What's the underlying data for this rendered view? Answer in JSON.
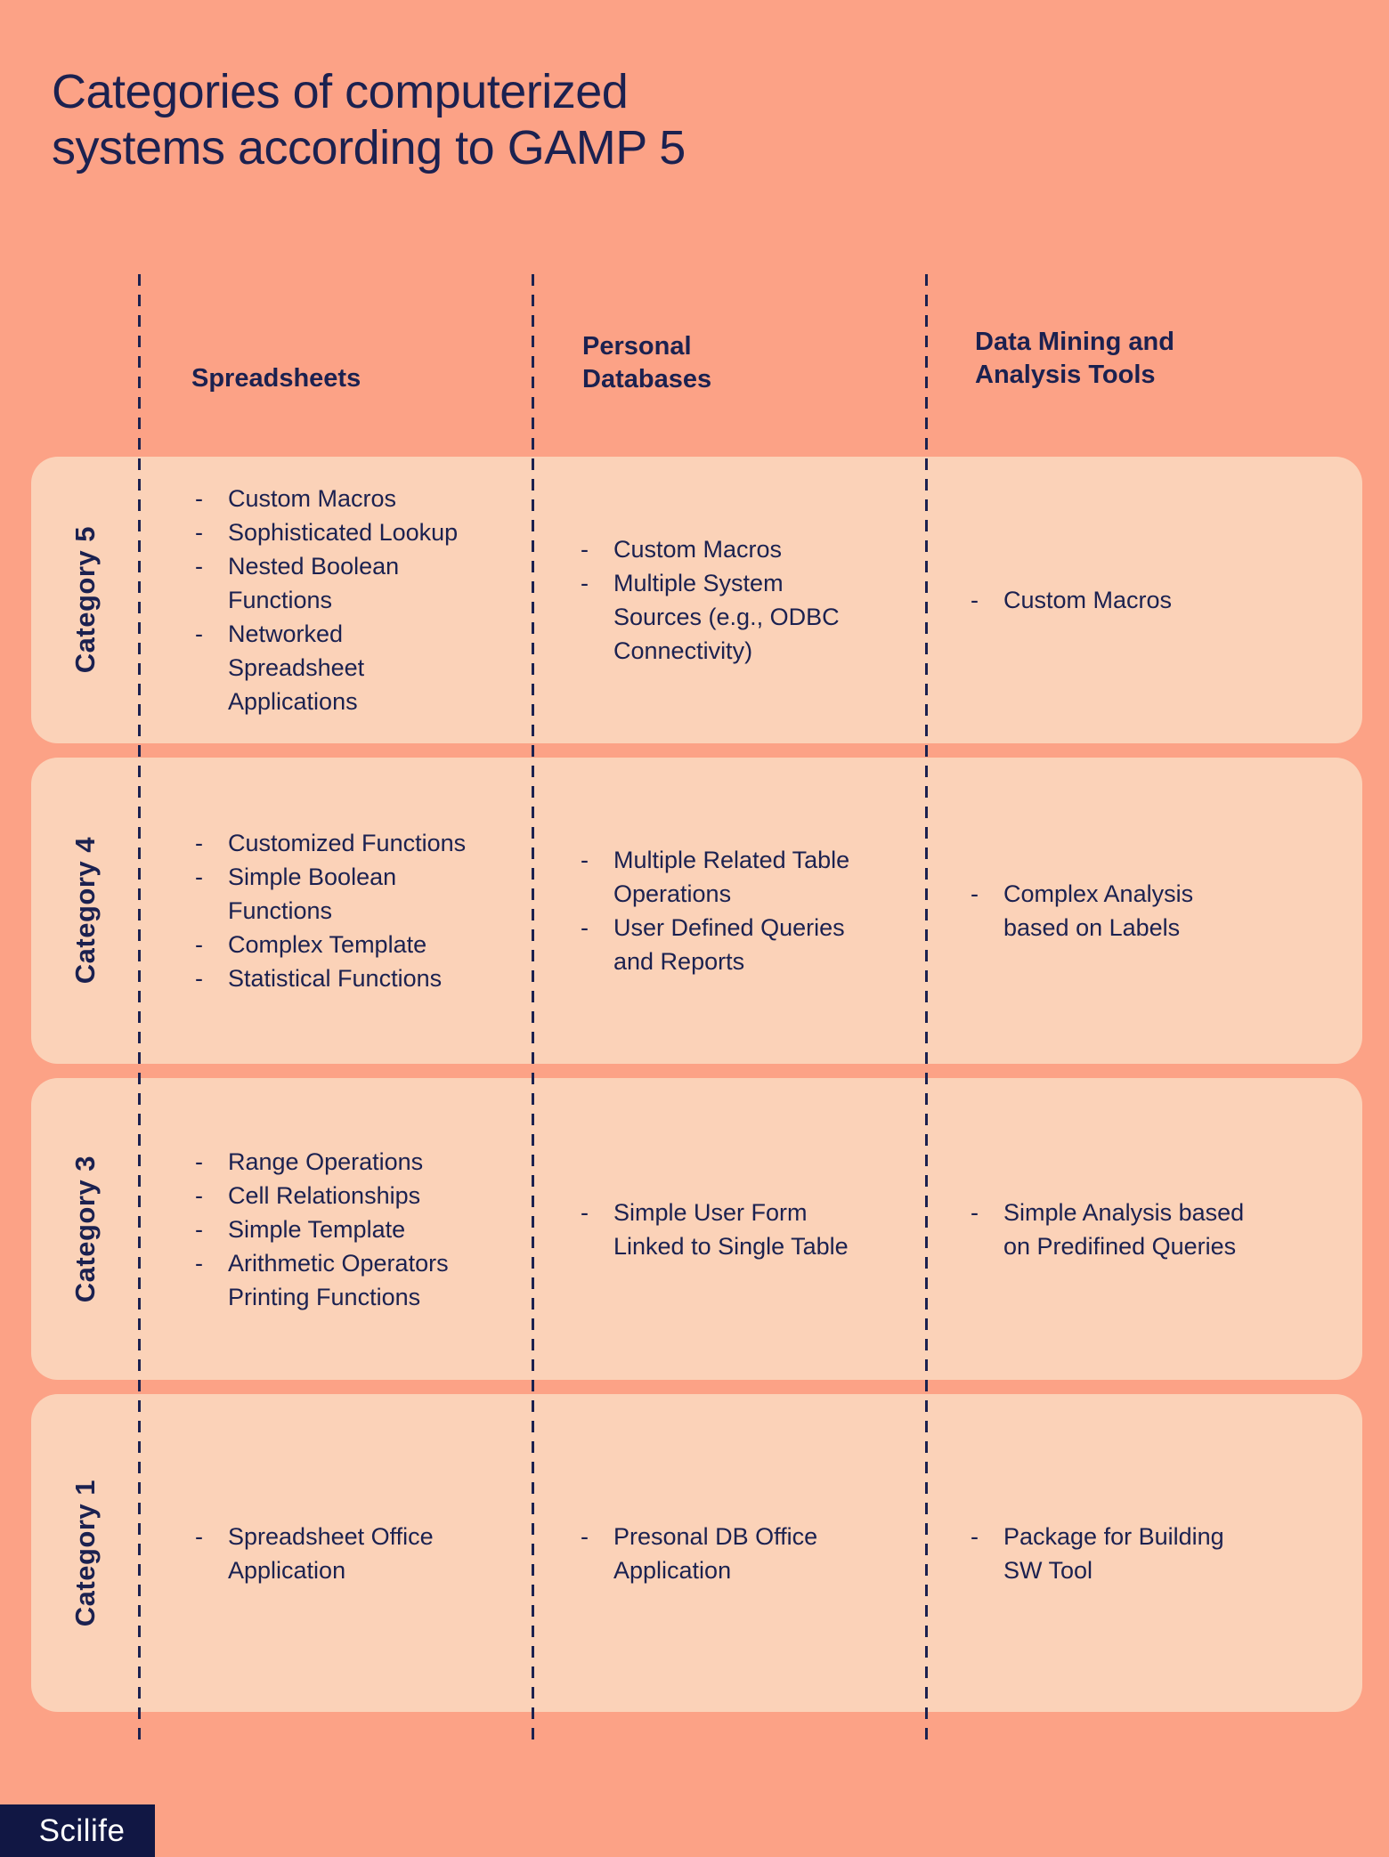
{
  "title": {
    "text": "Categories of computerized\nsystems according to GAMP 5"
  },
  "ui": {
    "bullet": "-"
  },
  "columns": [
    {
      "label": "Spreadsheets"
    },
    {
      "label": "Personal\nDatabases"
    },
    {
      "label": "Data Mining and\nAnalysis Tools"
    }
  ],
  "rows": [
    {
      "label": "Category 5",
      "cells": [
        {
          "items": [
            "Custom Macros",
            "Sophisticated Lookup",
            "Nested Boolean\nFunctions",
            "Networked\nSpreadsheet\nApplications"
          ]
        },
        {
          "items": [
            "Custom Macros",
            "Multiple System\nSources (e.g., ODBC\nConnectivity)"
          ]
        },
        {
          "items": [
            "Custom Macros"
          ]
        }
      ]
    },
    {
      "label": "Category 4",
      "cells": [
        {
          "items": [
            "Customized Functions",
            "Simple Boolean\nFunctions",
            "Complex Template",
            "Statistical Functions"
          ]
        },
        {
          "items": [
            "Multiple Related Table\nOperations",
            "User Defined Queries\nand Reports"
          ]
        },
        {
          "items": [
            "Complex Analysis\nbased on Labels"
          ]
        }
      ]
    },
    {
      "label": "Category 3",
      "cells": [
        {
          "items": [
            "Range Operations",
            "Cell Relationships",
            "Simple Template",
            "Arithmetic Operators\nPrinting Functions"
          ]
        },
        {
          "items": [
            "Simple User Form\nLinked to Single Table"
          ]
        },
        {
          "items": [
            "Simple Analysis based\non Predifined Queries"
          ]
        }
      ]
    },
    {
      "label": "Category 1",
      "cells": [
        {
          "items": [
            "Spreadsheet Office\nApplication"
          ]
        },
        {
          "items": [
            "Presonal DB Office\nApplication"
          ]
        },
        {
          "items": [
            "Package for Building\nSW Tool"
          ]
        }
      ]
    }
  ],
  "logo": {
    "text": "Scilife"
  },
  "colors": {
    "background": "#fca286",
    "panel": "#fbd2b8",
    "text_navy": "#1b2150",
    "logo_background": "#111744",
    "logo_text": "#ffffff"
  }
}
